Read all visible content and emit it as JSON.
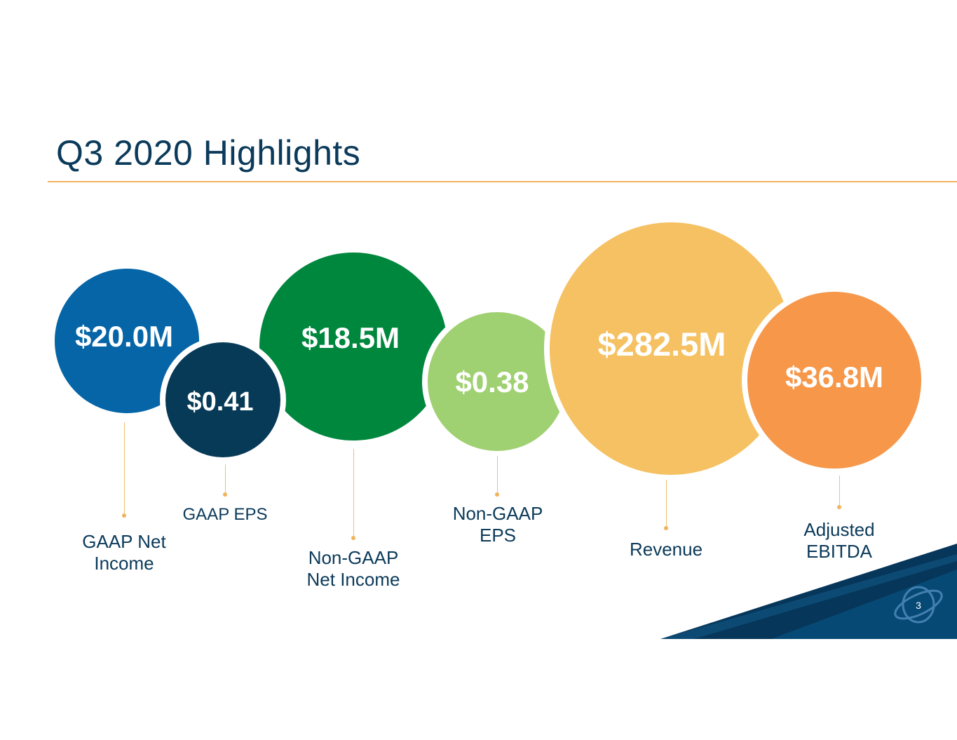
{
  "slide": {
    "title": "Q3 2020 Highlights",
    "page_number": "3"
  },
  "metrics": [
    {
      "value": "$20.0M",
      "label_lines": [
        "GAAP Net",
        "Income"
      ],
      "color": "#0565a6"
    },
    {
      "value": "$0.41",
      "label_lines": [
        "GAAP EPS"
      ],
      "color": "#073a57"
    },
    {
      "value": "$18.5M",
      "label_lines": [
        "Non-GAAP",
        "Net Income"
      ],
      "color": "#00873e"
    },
    {
      "value": "$0.38",
      "label_lines": [
        "Non-GAAP",
        "EPS"
      ],
      "color": "#9fd071"
    },
    {
      "value": "$282.5M",
      "label_lines": [
        "Revenue"
      ],
      "color": "#f5c162"
    },
    {
      "value": "$36.8M",
      "label_lines": [
        "Adjusted",
        "EBITDA"
      ],
      "color": "#f6974a"
    }
  ],
  "colors": {
    "accent_rule": "#f0b35a",
    "title": "#0b3a5a",
    "corner_dark": "#06365a",
    "corner_mid": "#0a5a8c"
  },
  "icons": [
    "globe-logo-icon"
  ]
}
